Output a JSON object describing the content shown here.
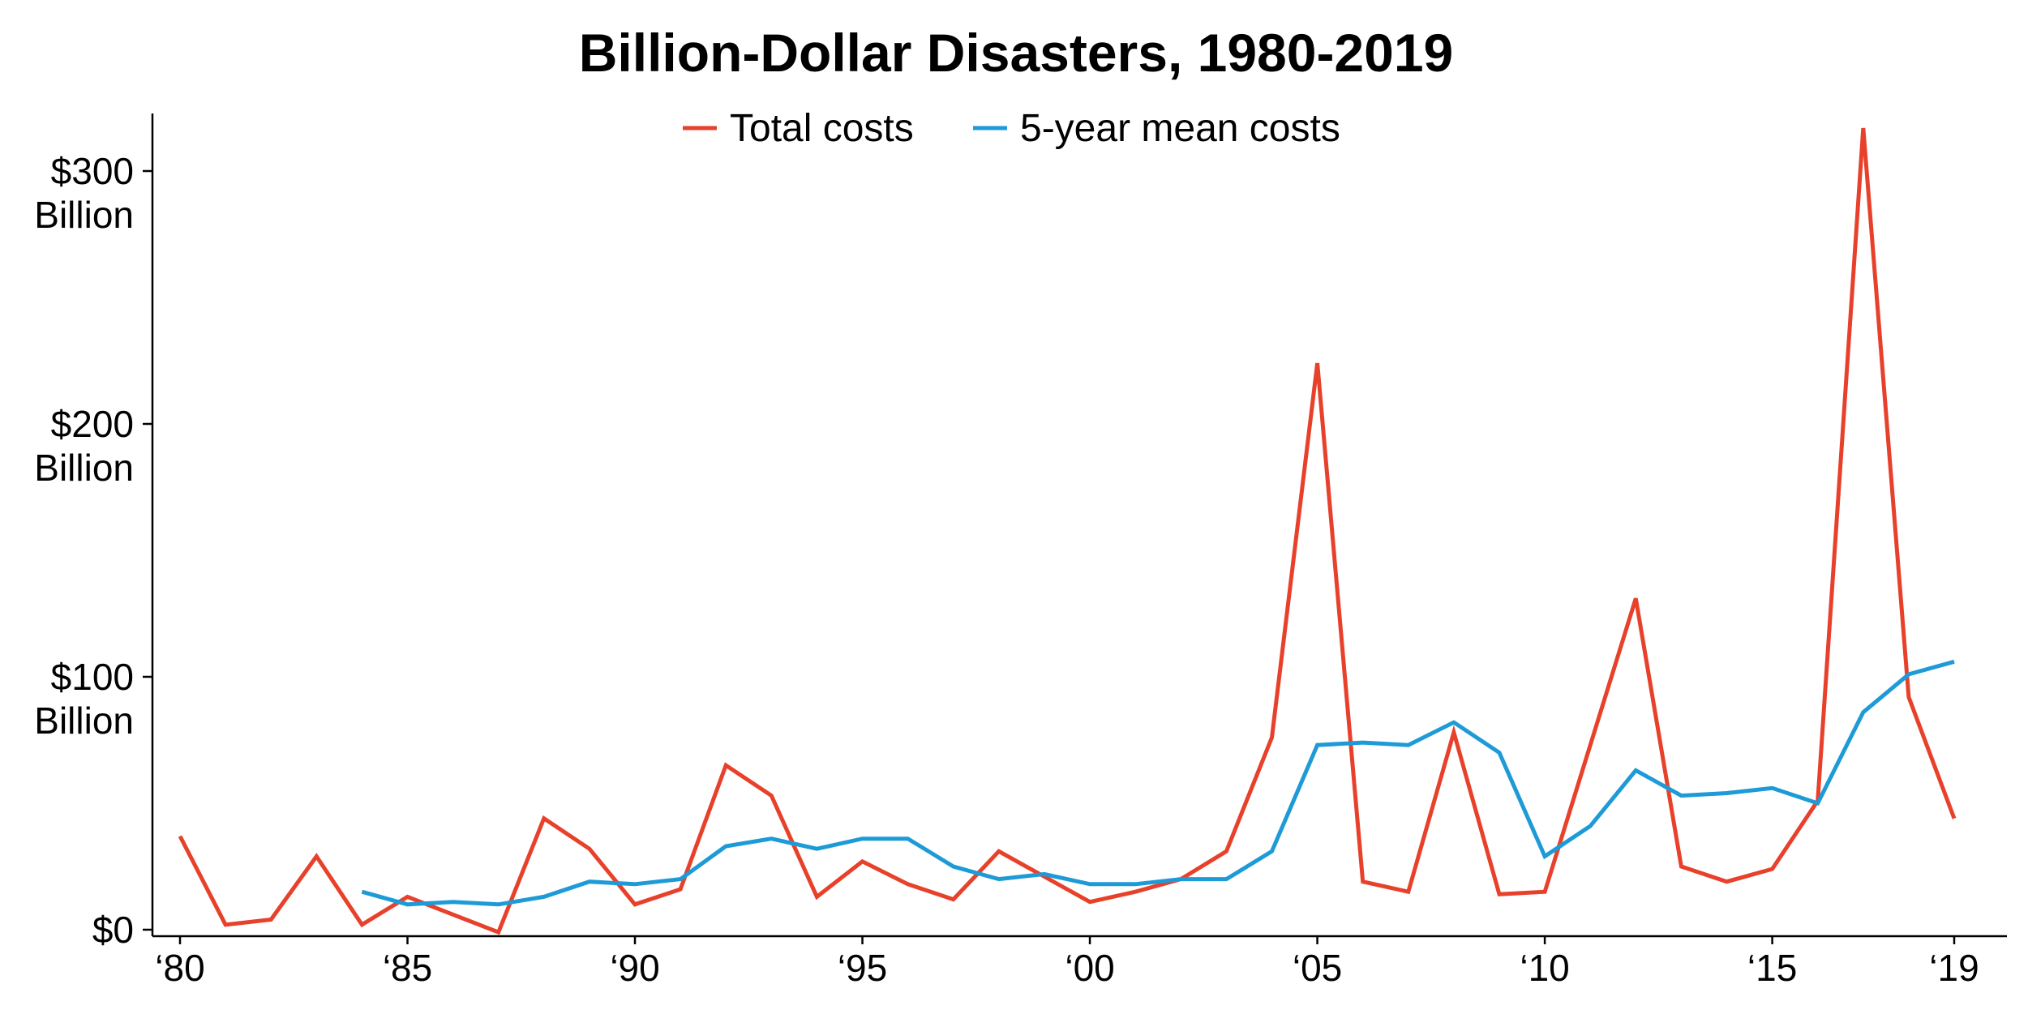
{
  "chart_data": {
    "type": "line",
    "title": "Billion-Dollar Disasters, 1980-2019",
    "xlabel": "",
    "ylabel": "",
    "xlim": [
      1980,
      2019
    ],
    "ylim": [
      0,
      320
    ],
    "x_ticks": [
      {
        "value": 1980,
        "label": "‘80"
      },
      {
        "value": 1985,
        "label": "‘85"
      },
      {
        "value": 1990,
        "label": "‘90"
      },
      {
        "value": 1995,
        "label": "‘95"
      },
      {
        "value": 2000,
        "label": "‘00"
      },
      {
        "value": 2005,
        "label": "‘05"
      },
      {
        "value": 2010,
        "label": "‘10"
      },
      {
        "value": 2015,
        "label": "‘15"
      },
      {
        "value": 2019,
        "label": "‘19"
      }
    ],
    "y_ticks": [
      {
        "value": 0,
        "lines": [
          "$0"
        ]
      },
      {
        "value": 100,
        "lines": [
          "$100",
          "Billion"
        ]
      },
      {
        "value": 200,
        "lines": [
          "$200",
          "Billion"
        ]
      },
      {
        "value": 300,
        "lines": [
          "$300",
          "Billion"
        ]
      }
    ],
    "grid": false,
    "legend_position": "top-center",
    "series": [
      {
        "name": "Total costs",
        "color": "#e8412b",
        "x": [
          1980,
          1981,
          1982,
          1983,
          1984,
          1985,
          1986,
          1987,
          1988,
          1989,
          1990,
          1991,
          1992,
          1993,
          1994,
          1995,
          1996,
          1997,
          1998,
          1999,
          2000,
          2001,
          2002,
          2003,
          2004,
          2005,
          2006,
          2007,
          2008,
          2009,
          2010,
          2011,
          2012,
          2013,
          2014,
          2015,
          2016,
          2017,
          2018,
          2019
        ],
        "y": [
          37,
          2,
          4,
          29,
          2,
          13,
          6,
          -1,
          44,
          32,
          10,
          16,
          65,
          53,
          13,
          27,
          18,
          12,
          31,
          21,
          11,
          15,
          20,
          31,
          76,
          224,
          19,
          15,
          78,
          14,
          15,
          73,
          131,
          25,
          19,
          24,
          51,
          317,
          92,
          44
        ]
      },
      {
        "name": "5-year mean costs",
        "color": "#1e9bd7",
        "x": [
          1984,
          1985,
          1986,
          1987,
          1988,
          1989,
          1990,
          1991,
          1992,
          1993,
          1994,
          1995,
          1996,
          1997,
          1998,
          1999,
          2000,
          2001,
          2002,
          2003,
          2004,
          2005,
          2006,
          2007,
          2008,
          2009,
          2010,
          2011,
          2012,
          2013,
          2014,
          2015,
          2016,
          2017,
          2018,
          2019
        ],
        "y": [
          15,
          10,
          11,
          10,
          13,
          19,
          18,
          20,
          33,
          36,
          32,
          36,
          36,
          25,
          20,
          22,
          18,
          18,
          20,
          20,
          31,
          73,
          74,
          73,
          82,
          70,
          29,
          41,
          63,
          53,
          54,
          56,
          50,
          86,
          101,
          106
        ]
      }
    ]
  }
}
